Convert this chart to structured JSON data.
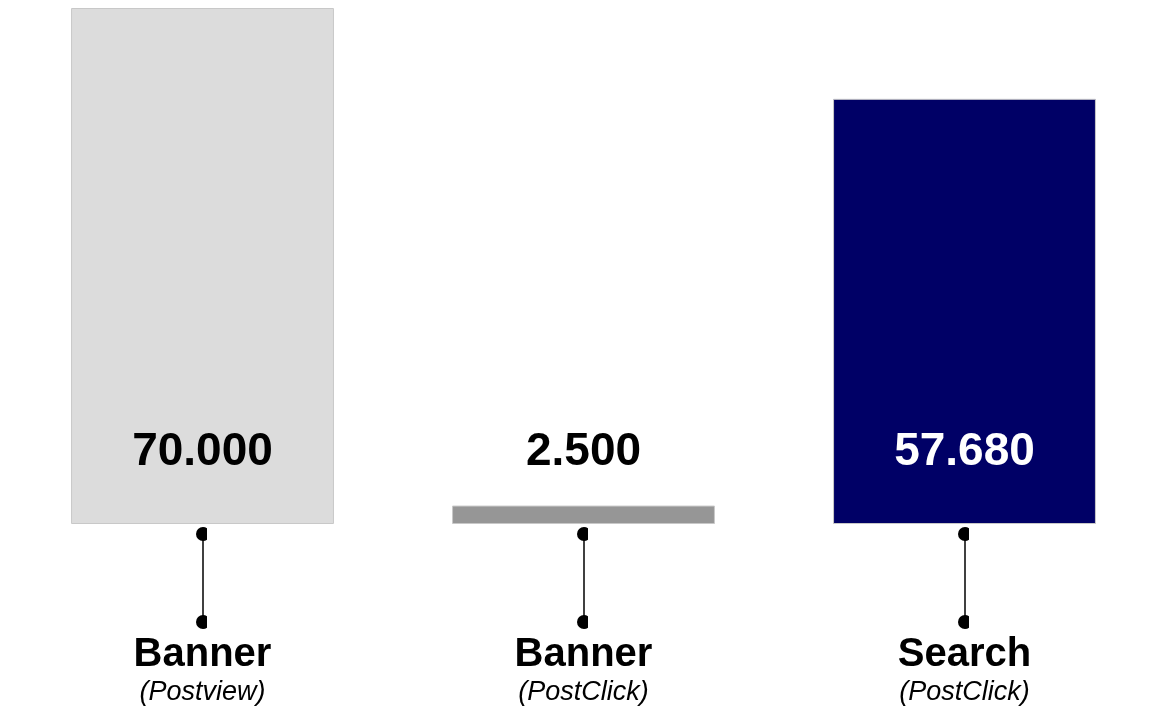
{
  "chart_data": {
    "type": "bar",
    "categories": [
      "Banner\n(Postview)",
      "Banner\n(PostClick)",
      "Search\n(PostClick)"
    ],
    "values": [
      70000,
      2500,
      57680
    ],
    "colors": [
      "#dcdcdc",
      "#969696",
      "#000066"
    ],
    "value_labels": [
      "70.000",
      "2.500",
      "57.680"
    ],
    "grid": false
  }
}
